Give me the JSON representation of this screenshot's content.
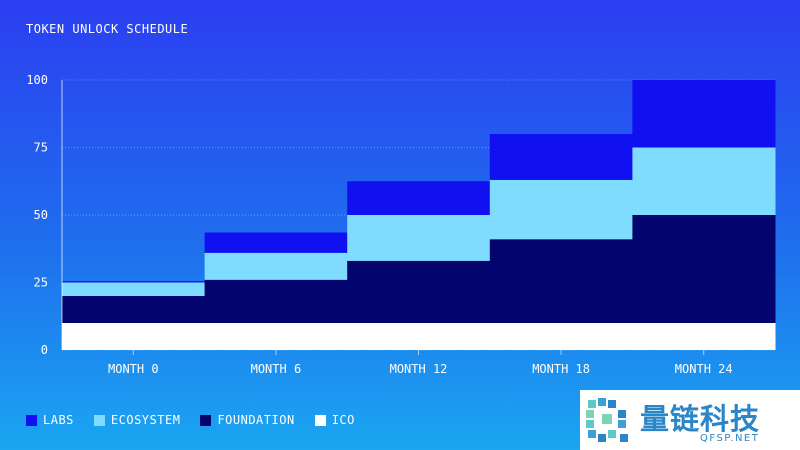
{
  "chart_data": {
    "type": "area",
    "style": "stacked-step",
    "title": "TOKEN UNLOCK SCHEDULE",
    "xlabel": "",
    "ylabel": "",
    "ylim": [
      0,
      100
    ],
    "yticks": [
      "0",
      "25",
      "50",
      "75",
      "100"
    ],
    "ytick_values": [
      0,
      25,
      50,
      75,
      100
    ],
    "categories": [
      "MONTH 0",
      "MONTH 6",
      "MONTH 12",
      "MONTH 18",
      "MONTH 24"
    ],
    "x": [
      0,
      6,
      12,
      18,
      24
    ],
    "series": [
      {
        "name": "ICO",
        "color": "#ffffff",
        "values": [
          10,
          10,
          10,
          10,
          10
        ]
      },
      {
        "name": "FOUNDATION",
        "color": "#04046e",
        "values": [
          10,
          16,
          23,
          31,
          40
        ]
      },
      {
        "name": "ECOSYSTEM",
        "color": "#7fdcff",
        "values": [
          5,
          10,
          17,
          22,
          25
        ]
      },
      {
        "name": "LABS",
        "color": "#1010f0",
        "values": [
          0.5,
          7.5,
          12.5,
          17,
          25
        ]
      }
    ],
    "legend_order": [
      "LABS",
      "ECOSYSTEM",
      "FOUNDATION",
      "ICO"
    ],
    "legend_position": "bottom-left",
    "grid": true
  },
  "watermark": {
    "name": "量链科技",
    "url": "QFSP.NET"
  }
}
